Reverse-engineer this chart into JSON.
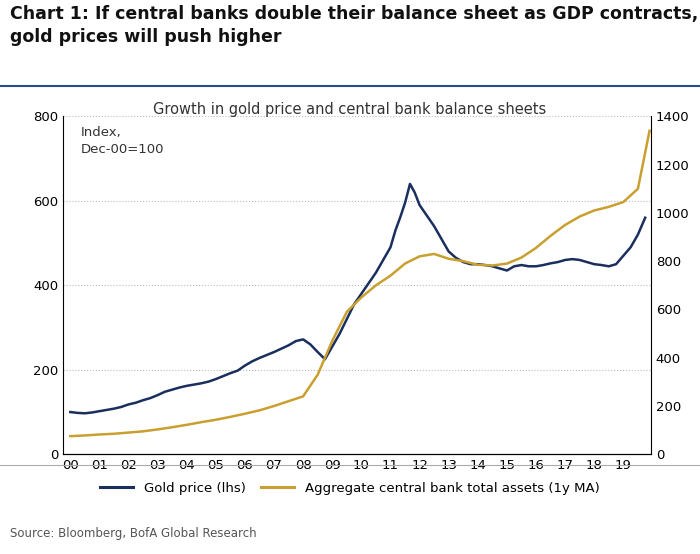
{
  "title_main": "Chart 1: If central banks double their balance sheet as GDP contracts,\ngold prices will push higher",
  "subtitle": "Growth in gold price and central bank balance sheets",
  "index_label": "Index,\nDec-00=100",
  "source": "Source: Bloomberg, BofA Global Research",
  "legend_gold": "Gold price (lhs)",
  "legend_cb": "Aggregate central bank total assets (1y MA)",
  "gold_color": "#1b2f5e",
  "cb_color": "#c9a030",
  "background_color": "#ffffff",
  "ylim_left": [
    0,
    800
  ],
  "ylim_right": [
    0,
    1400
  ],
  "yticks_left": [
    0,
    200,
    400,
    600,
    800
  ],
  "yticks_right": [
    0,
    200,
    400,
    600,
    800,
    1000,
    1200,
    1400
  ],
  "xtick_labels": [
    "00",
    "01",
    "02",
    "03",
    "04",
    "05",
    "06",
    "07",
    "08",
    "09",
    "10",
    "11",
    "12",
    "13",
    "14",
    "15",
    "16",
    "17",
    "18",
    "19"
  ],
  "gold_x": [
    2000,
    2000.25,
    2000.5,
    2000.75,
    2001,
    2001.25,
    2001.5,
    2001.75,
    2002,
    2002.25,
    2002.5,
    2002.75,
    2003,
    2003.25,
    2003.5,
    2003.75,
    2004,
    2004.25,
    2004.5,
    2004.75,
    2005,
    2005.25,
    2005.5,
    2005.75,
    2006,
    2006.25,
    2006.5,
    2006.75,
    2007,
    2007.25,
    2007.5,
    2007.75,
    2008,
    2008.25,
    2008.5,
    2008.75,
    2009,
    2009.25,
    2009.5,
    2009.75,
    2010,
    2010.25,
    2010.5,
    2010.75,
    2011,
    2011.17,
    2011.33,
    2011.5,
    2011.67,
    2011.83,
    2012,
    2012.25,
    2012.5,
    2012.75,
    2013,
    2013.25,
    2013.5,
    2013.75,
    2014,
    2014.25,
    2014.5,
    2014.75,
    2015,
    2015.25,
    2015.5,
    2015.75,
    2016,
    2016.25,
    2016.5,
    2016.75,
    2017,
    2017.25,
    2017.5,
    2017.75,
    2018,
    2018.25,
    2018.5,
    2018.75,
    2019,
    2019.25,
    2019.5,
    2019.75
  ],
  "gold_y": [
    100,
    98,
    97,
    99,
    102,
    105,
    108,
    112,
    118,
    122,
    128,
    133,
    140,
    148,
    153,
    158,
    162,
    165,
    168,
    172,
    178,
    185,
    192,
    198,
    210,
    220,
    228,
    235,
    242,
    250,
    258,
    268,
    272,
    260,
    242,
    225,
    255,
    285,
    320,
    355,
    380,
    405,
    430,
    460,
    490,
    530,
    560,
    595,
    640,
    620,
    590,
    565,
    540,
    510,
    480,
    465,
    455,
    450,
    450,
    448,
    445,
    440,
    435,
    445,
    448,
    445,
    445,
    448,
    452,
    455,
    460,
    462,
    460,
    455,
    450,
    448,
    445,
    450,
    470,
    490,
    520,
    560
  ],
  "cb_x": [
    2000,
    2000.5,
    2001,
    2001.5,
    2002,
    2002.5,
    2003,
    2003.5,
    2004,
    2004.5,
    2005,
    2005.5,
    2006,
    2006.5,
    2007,
    2007.5,
    2008,
    2008.5,
    2009,
    2009.5,
    2010,
    2010.5,
    2011,
    2011.5,
    2012,
    2012.5,
    2013,
    2013.5,
    2014,
    2014.5,
    2015,
    2015.5,
    2016,
    2016.5,
    2017,
    2017.5,
    2018,
    2018.5,
    2019,
    2019.5,
    2019.9
  ],
  "cb_y": [
    75,
    78,
    82,
    85,
    90,
    95,
    103,
    112,
    122,
    133,
    143,
    155,
    168,
    182,
    200,
    220,
    240,
    330,
    470,
    590,
    650,
    700,
    740,
    790,
    820,
    830,
    810,
    800,
    785,
    782,
    790,
    815,
    855,
    905,
    950,
    985,
    1010,
    1025,
    1045,
    1100,
    1340
  ]
}
